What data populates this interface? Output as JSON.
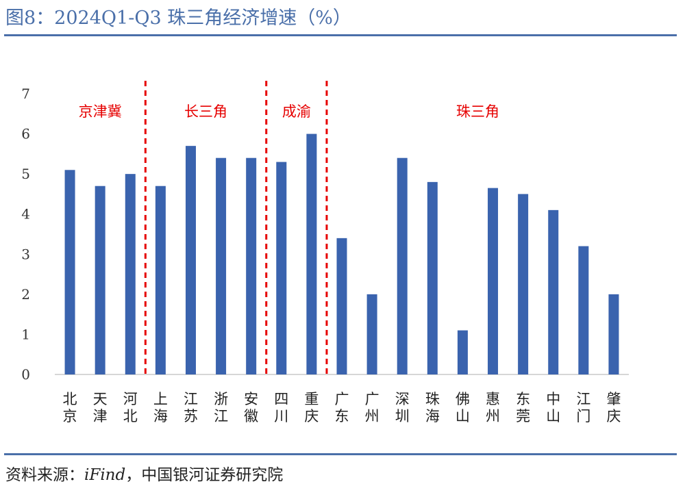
{
  "figure": {
    "title": "图8：2024Q1-Q3 珠三角经济增速（%）",
    "source_label": "资料来源：",
    "source_italic": "iFind",
    "source_rest": "，中国银河证券研究院"
  },
  "colors": {
    "bar": "#3a63ae",
    "divider": "#e60000",
    "rule": "#4a6fa9"
  },
  "chart_data": {
    "type": "bar",
    "title": "",
    "xlabel": "",
    "ylabel": "",
    "ylim": [
      0,
      7
    ],
    "yticks": [
      0,
      1,
      2,
      3,
      4,
      5,
      6,
      7
    ],
    "grid": false,
    "categories": [
      "北京",
      "天津",
      "河北",
      "上海",
      "江苏",
      "浙江",
      "安徽",
      "四川",
      "重庆",
      "广东",
      "广州",
      "深圳",
      "珠海",
      "佛山",
      "惠州",
      "东莞",
      "中山",
      "江门",
      "肇庆"
    ],
    "values": [
      5.1,
      4.7,
      5.0,
      4.7,
      5.7,
      5.4,
      5.4,
      5.3,
      6.0,
      3.4,
      2.0,
      5.4,
      4.8,
      1.1,
      4.65,
      4.5,
      4.1,
      3.2,
      2.0
    ],
    "regions": [
      {
        "label": "京津冀",
        "start": 0,
        "end": 2
      },
      {
        "label": "长三角",
        "start": 3,
        "end": 6
      },
      {
        "label": "成渝",
        "start": 7,
        "end": 8
      },
      {
        "label": "珠三角",
        "start": 9,
        "end": 18
      }
    ]
  }
}
